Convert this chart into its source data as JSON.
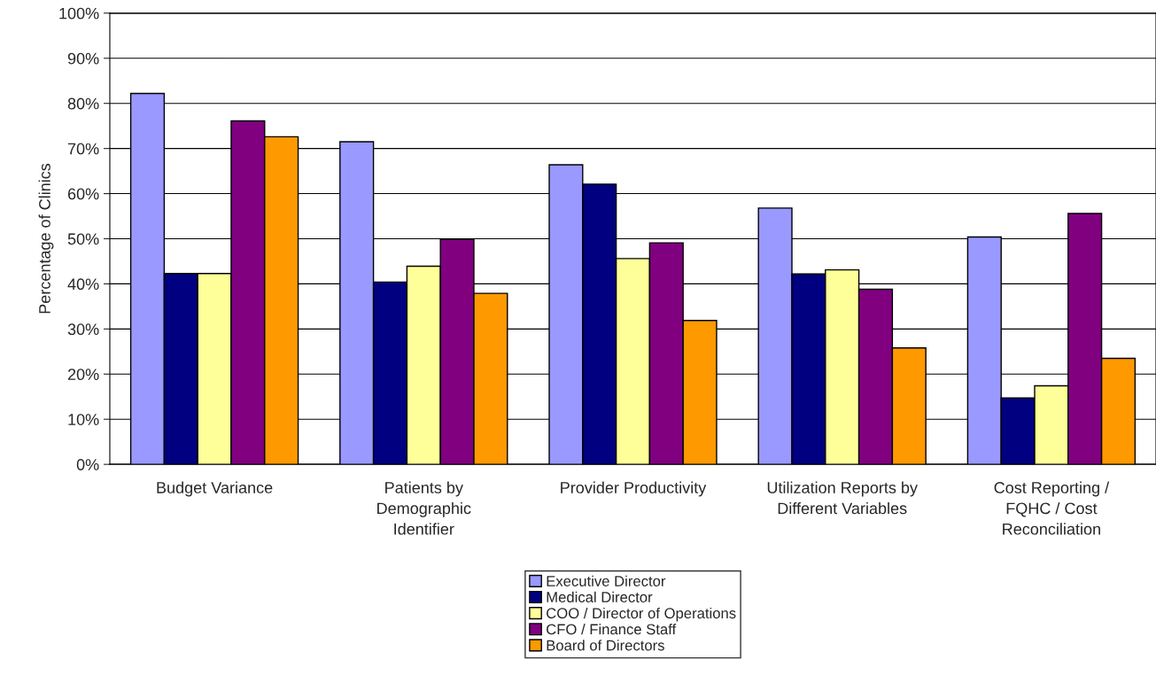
{
  "chart_data": {
    "type": "bar",
    "ylabel": "Percentage of Clinics",
    "categories": [
      "Budget Variance",
      "Patients by\nDemographic\nIdentifier",
      "Provider Productivity",
      "Utilization Reports by\nDifferent Variables",
      "Cost Reporting /\nFQHC / Cost\nReconciliation"
    ],
    "series": [
      {
        "name": "Executive Director",
        "color": "#9999ff",
        "values": [
          82.2,
          71.5,
          66.4,
          56.8,
          50.4
        ]
      },
      {
        "name": "Medical Director",
        "color": "#000080",
        "values": [
          42.3,
          40.4,
          62.1,
          42.2,
          14.7
        ]
      },
      {
        "name": "COO / Director of Operations",
        "color": "#ffff99",
        "values": [
          42.3,
          43.9,
          45.6,
          43.1,
          17.4
        ]
      },
      {
        "name": "CFO / Finance Staff",
        "color": "#800080",
        "values": [
          76.1,
          49.9,
          49.1,
          38.8,
          55.6
        ]
      },
      {
        "name": "Board of Directors",
        "color": "#ff9900",
        "values": [
          72.6,
          37.9,
          31.9,
          25.8,
          23.5
        ]
      }
    ],
    "ylim": [
      0,
      100
    ],
    "yticks": [
      {
        "value": 0,
        "label": "0%"
      },
      {
        "value": 10,
        "label": "10%"
      },
      {
        "value": 20,
        "label": "20%"
      },
      {
        "value": 30,
        "label": "30%"
      },
      {
        "value": 40,
        "label": "40%"
      },
      {
        "value": 50,
        "label": "50%"
      },
      {
        "value": 60,
        "label": "60%"
      },
      {
        "value": 70,
        "label": "70%"
      },
      {
        "value": 80,
        "label": "80%"
      },
      {
        "value": 90,
        "label": "90%"
      },
      {
        "value": 100,
        "label": "100%"
      }
    ],
    "grid": "y",
    "legend": "bottom"
  }
}
